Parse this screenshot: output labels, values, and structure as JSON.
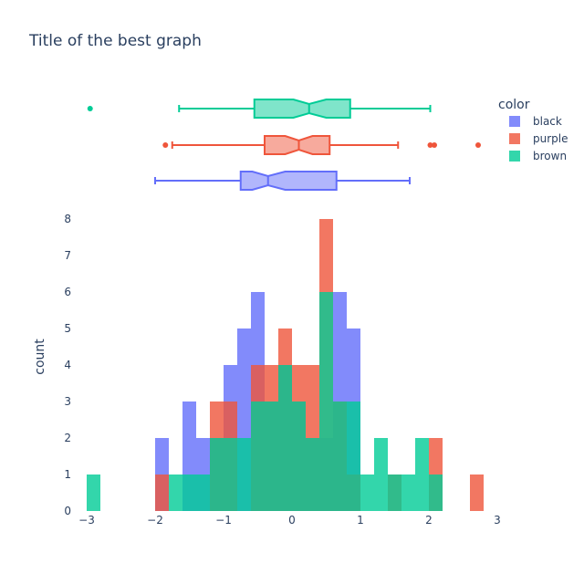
{
  "chart_data": {
    "type": "histogram",
    "title": "Title of the best graph",
    "xlabel": "",
    "ylabel": "count",
    "xlim": [
      -3.2,
      3.2
    ],
    "ylim": [
      0,
      8
    ],
    "x_ticks": [
      -3,
      -2,
      -1,
      0,
      1,
      2,
      3
    ],
    "x_tick_labels": [
      "−3",
      "−2",
      "−1",
      "0",
      "1",
      "2",
      "3"
    ],
    "y_ticks": [
      0,
      1,
      2,
      3,
      4,
      5,
      6,
      7,
      8
    ],
    "bin_start": -3.0,
    "bin_size": 0.2,
    "legend": {
      "title": "color",
      "placement": "top-right"
    },
    "series": [
      {
        "name": "black",
        "color": "#636efa",
        "bins": [
          {
            "x0": -2.0,
            "x1": -1.8,
            "count": 2
          },
          {
            "x0": -1.6,
            "x1": -1.4,
            "count": 3
          },
          {
            "x0": -1.4,
            "x1": -1.2,
            "count": 2
          },
          {
            "x0": -1.2,
            "x1": -1.0,
            "count": 2
          },
          {
            "x0": -1.0,
            "x1": -0.8,
            "count": 4
          },
          {
            "x0": -0.8,
            "x1": -0.6,
            "count": 5
          },
          {
            "x0": -0.6,
            "x1": -0.4,
            "count": 6
          },
          {
            "x0": -0.4,
            "x1": -0.2,
            "count": 3
          },
          {
            "x0": -0.2,
            "x1": 0.0,
            "count": 4
          },
          {
            "x0": 0.0,
            "x1": 0.2,
            "count": 3
          },
          {
            "x0": 0.2,
            "x1": 0.4,
            "count": 2
          },
          {
            "x0": 0.4,
            "x1": 0.6,
            "count": 2
          },
          {
            "x0": 0.6,
            "x1": 0.8,
            "count": 6
          },
          {
            "x0": 0.8,
            "x1": 1.0,
            "count": 5
          }
        ],
        "box": {
          "q1": -0.75,
          "median": -0.35,
          "q3": 0.65,
          "lowerfence": -2.0,
          "upperfence": 1.72,
          "notch": [
            -0.58,
            -0.1
          ],
          "outliers": []
        }
      },
      {
        "name": "purple",
        "color": "#ef553b",
        "bins": [
          {
            "x0": -2.0,
            "x1": -1.8,
            "count": 1
          },
          {
            "x0": -1.2,
            "x1": -1.0,
            "count": 3
          },
          {
            "x0": -1.0,
            "x1": -0.8,
            "count": 3
          },
          {
            "x0": -0.6,
            "x1": -0.4,
            "count": 4
          },
          {
            "x0": -0.4,
            "x1": -0.2,
            "count": 4
          },
          {
            "x0": -0.2,
            "x1": 0.0,
            "count": 5
          },
          {
            "x0": 0.0,
            "x1": 0.2,
            "count": 4
          },
          {
            "x0": 0.2,
            "x1": 0.4,
            "count": 4
          },
          {
            "x0": 0.4,
            "x1": 0.6,
            "count": 8
          },
          {
            "x0": 0.6,
            "x1": 0.8,
            "count": 3
          },
          {
            "x0": 0.8,
            "x1": 1.0,
            "count": 1
          },
          {
            "x0": 1.4,
            "x1": 1.6,
            "count": 1
          },
          {
            "x0": 2.0,
            "x1": 2.2,
            "count": 2
          },
          {
            "x0": 2.6,
            "x1": 2.8,
            "count": 1
          }
        ],
        "box": {
          "q1": -0.4,
          "median": 0.1,
          "q3": 0.55,
          "lowerfence": -1.75,
          "upperfence": 1.55,
          "notch": [
            -0.1,
            0.3
          ],
          "outliers": [
            -1.85,
            2.02,
            2.08,
            2.72
          ]
        }
      },
      {
        "name": "brown",
        "color": "#00cc96",
        "bins": [
          {
            "x0": -3.0,
            "x1": -2.8,
            "count": 1
          },
          {
            "x0": -1.8,
            "x1": -1.6,
            "count": 1
          },
          {
            "x0": -1.6,
            "x1": -1.4,
            "count": 1
          },
          {
            "x0": -1.4,
            "x1": -1.2,
            "count": 1
          },
          {
            "x0": -1.2,
            "x1": -1.0,
            "count": 2
          },
          {
            "x0": -1.0,
            "x1": -0.8,
            "count": 2
          },
          {
            "x0": -0.8,
            "x1": -0.6,
            "count": 2
          },
          {
            "x0": -0.6,
            "x1": -0.4,
            "count": 3
          },
          {
            "x0": -0.4,
            "x1": -0.2,
            "count": 3
          },
          {
            "x0": -0.2,
            "x1": 0.0,
            "count": 4
          },
          {
            "x0": 0.0,
            "x1": 0.2,
            "count": 3
          },
          {
            "x0": 0.2,
            "x1": 0.4,
            "count": 2
          },
          {
            "x0": 0.4,
            "x1": 0.6,
            "count": 6
          },
          {
            "x0": 0.6,
            "x1": 0.8,
            "count": 3
          },
          {
            "x0": 0.8,
            "x1": 1.0,
            "count": 3
          },
          {
            "x0": 1.0,
            "x1": 1.2,
            "count": 1
          },
          {
            "x0": 1.2,
            "x1": 1.4,
            "count": 2
          },
          {
            "x0": 1.4,
            "x1": 1.6,
            "count": 1
          },
          {
            "x0": 1.6,
            "x1": 1.8,
            "count": 1
          },
          {
            "x0": 1.8,
            "x1": 2.0,
            "count": 2
          },
          {
            "x0": 2.0,
            "x1": 2.2,
            "count": 1
          }
        ],
        "box": {
          "q1": -0.55,
          "median": 0.25,
          "q3": 0.85,
          "lowerfence": -1.65,
          "upperfence": 2.02,
          "notch": [
            0.02,
            0.5
          ],
          "outliers": [
            -2.95
          ]
        }
      }
    ]
  }
}
